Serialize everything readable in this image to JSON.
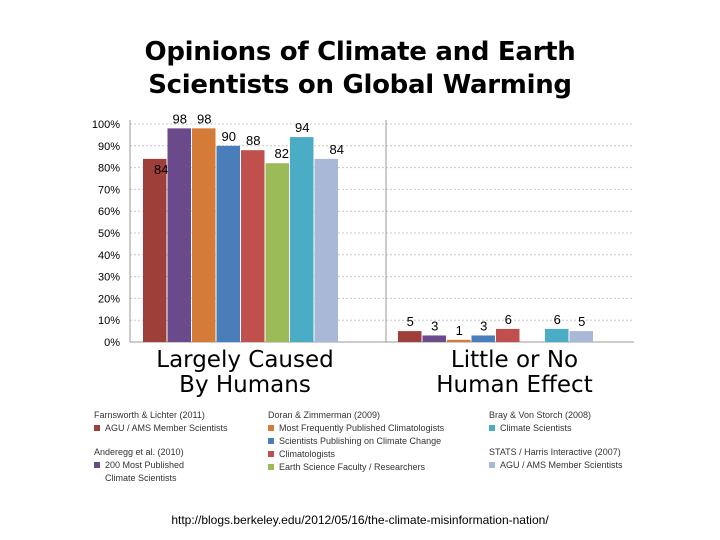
{
  "title_line1": "Opinions of Climate and Earth",
  "title_line2": "Scientists on Global Warming",
  "chart_data": {
    "type": "bar",
    "groups": [
      "Largely Caused By Humans",
      "Little or No Human Effect"
    ],
    "group_labels": {
      "left": [
        "Largely Caused",
        "By Humans"
      ],
      "right": [
        "Little or No",
        "Human Effect"
      ]
    },
    "yticks": [
      "100%",
      "90%",
      "80%",
      "70%",
      "60%",
      "50%",
      "40%",
      "30%",
      "20%",
      "10%",
      "0%"
    ],
    "ylim": [
      0,
      100
    ],
    "series": [
      {
        "name": "AGU / AMS Member Scientists (Farnsworth & Lichter 2011)",
        "color": "#9e3f3a",
        "values": [
          84,
          5
        ]
      },
      {
        "name": "200 Most Published Climate Scientists (Anderegg et al. 2010)",
        "color": "#6a4a8a",
        "values": [
          98,
          3
        ]
      },
      {
        "name": "Most Frequently Published Climatologists",
        "color": "#d47b37",
        "values": [
          98,
          1
        ]
      },
      {
        "name": "Scientists Publishing on Climate Change",
        "color": "#4a7ebb",
        "values": [
          90,
          3
        ]
      },
      {
        "name": "Climatologists",
        "color": "#c0504d",
        "values": [
          88,
          6
        ]
      },
      {
        "name": "Earth Science Faculty / Researchers",
        "color": "#9bbb59",
        "values": [
          82,
          null
        ]
      },
      {
        "name": "Climate Scientists (Bray & Von Storch 2008)",
        "color": "#4bacc6",
        "values": [
          94,
          6
        ]
      },
      {
        "name": "AGU / AMS Member Scientists (STATS / Harris Interactive 2007)",
        "color": "#aab8d8",
        "values": [
          84,
          5
        ]
      }
    ]
  },
  "legend": [
    {
      "source": "Farnsworth & Lichter (2011)",
      "items": [
        {
          "label": "AGU / AMS Member Scientists",
          "color": "#9e3f3a"
        }
      ]
    },
    {
      "source": "Anderegg et al. (2010)",
      "items": [
        {
          "label": "200 Most Published",
          "color": "#6a4a8a"
        }
      ],
      "extra": "Climate Scientists"
    },
    {
      "source": "Doran & Zimmerman (2009)",
      "items": [
        {
          "label": "Most Frequently Published Climatologists",
          "color": "#d47b37"
        },
        {
          "label": "Scientists Publishing on Climate Change",
          "color": "#4a7ebb"
        },
        {
          "label": "Climatologists",
          "color": "#c0504d"
        },
        {
          "label": "Earth Science Faculty / Researchers",
          "color": "#9bbb59"
        }
      ]
    },
    {
      "source": "Bray & Von Storch (2008)",
      "items": [
        {
          "label": "Climate Scientists",
          "color": "#4bacc6"
        }
      ]
    },
    {
      "source": "STATS / Harris Interactive (2007)",
      "items": [
        {
          "label": "AGU / AMS Member Scientists",
          "color": "#aab8d8"
        }
      ]
    }
  ],
  "url": "http://blogs.berkeley.edu/2012/05/16/the-climate-misinformation-nation/"
}
